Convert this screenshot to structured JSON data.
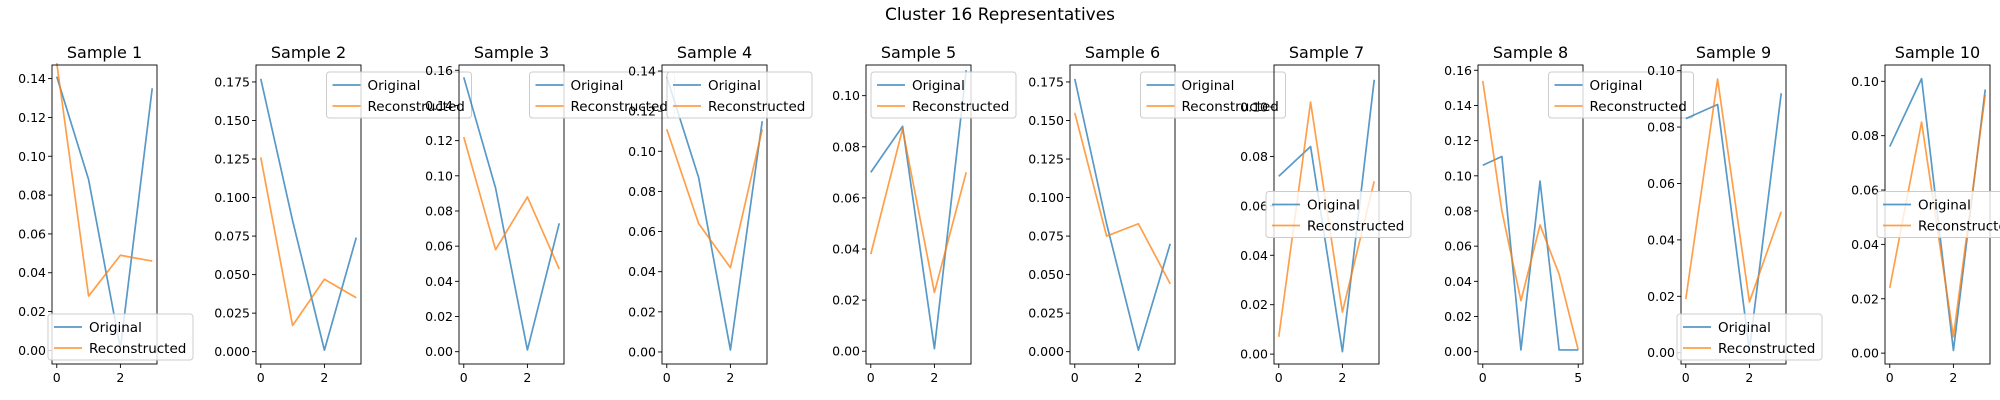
{
  "figure": {
    "suptitle": "Cluster 16 Representatives"
  },
  "colors": {
    "original": "#1f77b4",
    "reconstructed": "#ff7f0e"
  },
  "chart_data": [
    {
      "type": "line",
      "title": "Sample 1",
      "x": [
        0,
        1,
        2,
        3
      ],
      "xlim": [
        -0.15,
        3.15
      ],
      "xticks": [
        0,
        2
      ],
      "ylim": [
        -0.007,
        0.147
      ],
      "yticks": [
        0.0,
        0.02,
        0.04,
        0.06,
        0.08,
        0.1,
        0.12,
        0.14
      ],
      "yfmt": 2,
      "legend_loc": "lower-left",
      "series": [
        {
          "name": "Original",
          "values": [
            0.141,
            0.088,
            0.001,
            0.135
          ]
        },
        {
          "name": "Reconstructed",
          "values": [
            0.148,
            0.028,
            0.049,
            0.046
          ]
        }
      ]
    },
    {
      "type": "line",
      "title": "Sample 2",
      "x": [
        0,
        1,
        2,
        3
      ],
      "xlim": [
        -0.15,
        3.15
      ],
      "xticks": [
        0,
        2
      ],
      "ylim": [
        -0.008,
        0.186
      ],
      "yticks": [
        0.0,
        0.025,
        0.05,
        0.075,
        0.1,
        0.125,
        0.15,
        0.175
      ],
      "yfmt": 3,
      "legend_loc": "upper-right",
      "series": [
        {
          "name": "Original",
          "values": [
            0.177,
            0.085,
            0.001,
            0.074
          ]
        },
        {
          "name": "Reconstructed",
          "values": [
            0.126,
            0.017,
            0.047,
            0.035
          ]
        }
      ]
    },
    {
      "type": "line",
      "title": "Sample 3",
      "x": [
        0,
        1,
        2,
        3
      ],
      "xlim": [
        -0.15,
        3.15
      ],
      "xticks": [
        0,
        2
      ],
      "ylim": [
        -0.007,
        0.163
      ],
      "yticks": [
        0.0,
        0.02,
        0.04,
        0.06,
        0.08,
        0.1,
        0.12,
        0.14,
        0.16
      ],
      "yfmt": 2,
      "legend_loc": "upper-right",
      "series": [
        {
          "name": "Original",
          "values": [
            0.156,
            0.093,
            0.001,
            0.073
          ]
        },
        {
          "name": "Reconstructed",
          "values": [
            0.122,
            0.058,
            0.088,
            0.047
          ]
        }
      ]
    },
    {
      "type": "line",
      "title": "Sample 4",
      "x": [
        0,
        1,
        2,
        3
      ],
      "xlim": [
        -0.15,
        3.15
      ],
      "xticks": [
        0,
        2
      ],
      "ylim": [
        -0.006,
        0.143
      ],
      "yticks": [
        0.0,
        0.02,
        0.04,
        0.06,
        0.08,
        0.1,
        0.12,
        0.14
      ],
      "yfmt": 2,
      "legend_loc": "upper-left",
      "series": [
        {
          "name": "Original",
          "values": [
            0.137,
            0.087,
            0.001,
            0.115
          ]
        },
        {
          "name": "Reconstructed",
          "values": [
            0.111,
            0.064,
            0.042,
            0.111
          ]
        }
      ]
    },
    {
      "type": "line",
      "title": "Sample 5",
      "x": [
        0,
        1,
        2,
        3
      ],
      "xlim": [
        -0.15,
        3.15
      ],
      "xticks": [
        0,
        2
      ],
      "ylim": [
        -0.005,
        0.112
      ],
      "yticks": [
        0.0,
        0.02,
        0.04,
        0.06,
        0.08,
        0.1
      ],
      "yfmt": 2,
      "legend_loc": "upper-left",
      "series": [
        {
          "name": "Original",
          "values": [
            0.07,
            0.088,
            0.001,
            0.11
          ]
        },
        {
          "name": "Reconstructed",
          "values": [
            0.038,
            0.087,
            0.023,
            0.07
          ]
        }
      ]
    },
    {
      "type": "line",
      "title": "Sample 6",
      "x": [
        0,
        1,
        2,
        3
      ],
      "xlim": [
        -0.15,
        3.15
      ],
      "xticks": [
        0,
        2
      ],
      "ylim": [
        -0.008,
        0.186
      ],
      "yticks": [
        0.0,
        0.025,
        0.05,
        0.075,
        0.1,
        0.125,
        0.15,
        0.175
      ],
      "yfmt": 3,
      "legend_loc": "upper-right",
      "series": [
        {
          "name": "Original",
          "values": [
            0.177,
            0.083,
            0.001,
            0.07
          ]
        },
        {
          "name": "Reconstructed",
          "values": [
            0.155,
            0.075,
            0.083,
            0.044
          ]
        }
      ]
    },
    {
      "type": "line",
      "title": "Sample 7",
      "x": [
        0,
        1,
        2,
        3
      ],
      "xlim": [
        -0.15,
        3.15
      ],
      "xticks": [
        0,
        2
      ],
      "ylim": [
        -0.004,
        0.117
      ],
      "yticks": [
        0.0,
        0.02,
        0.04,
        0.06,
        0.08,
        0.1
      ],
      "yfmt": 2,
      "legend_loc": "center-left",
      "series": [
        {
          "name": "Original",
          "values": [
            0.072,
            0.084,
            0.001,
            0.111
          ]
        },
        {
          "name": "Reconstructed",
          "values": [
            0.007,
            0.102,
            0.017,
            0.07
          ]
        }
      ]
    },
    {
      "type": "line",
      "title": "Sample 8",
      "x": [
        0,
        1,
        2,
        3,
        4,
        5
      ],
      "xlim": [
        -0.25,
        5.25
      ],
      "xticks": [
        0,
        5
      ],
      "ylim": [
        -0.007,
        0.163
      ],
      "yticks": [
        0.0,
        0.02,
        0.04,
        0.06,
        0.08,
        0.1,
        0.12,
        0.14,
        0.16
      ],
      "yfmt": 2,
      "legend_loc": "upper-right",
      "series": [
        {
          "name": "Original",
          "values": [
            0.106,
            0.111,
            0.001,
            0.097,
            0.001,
            0.001
          ]
        },
        {
          "name": "Reconstructed",
          "values": [
            0.154,
            0.08,
            0.029,
            0.072,
            0.044,
            0.001
          ]
        }
      ]
    },
    {
      "type": "line",
      "title": "Sample 9",
      "x": [
        0,
        1,
        2,
        3
      ],
      "xlim": [
        -0.15,
        3.15
      ],
      "xticks": [
        0,
        2
      ],
      "ylim": [
        -0.004,
        0.102
      ],
      "yticks": [
        0.0,
        0.02,
        0.04,
        0.06,
        0.08,
        0.1
      ],
      "yfmt": 2,
      "legend_loc": "lower-left",
      "series": [
        {
          "name": "Original",
          "values": [
            0.083,
            0.088,
            0.001,
            0.092
          ]
        },
        {
          "name": "Reconstructed",
          "values": [
            0.019,
            0.097,
            0.018,
            0.05
          ]
        }
      ]
    },
    {
      "type": "line",
      "title": "Sample 10",
      "x": [
        0,
        1,
        2,
        3
      ],
      "xlim": [
        -0.15,
        3.15
      ],
      "xticks": [
        0,
        2
      ],
      "ylim": [
        -0.004,
        0.106
      ],
      "yticks": [
        0.0,
        0.02,
        0.04,
        0.06,
        0.08,
        0.1
      ],
      "yfmt": 2,
      "legend_loc": "center-left",
      "series": [
        {
          "name": "Original",
          "values": [
            0.076,
            0.101,
            0.001,
            0.097
          ]
        },
        {
          "name": "Reconstructed",
          "values": [
            0.024,
            0.085,
            0.006,
            0.095
          ]
        }
      ]
    }
  ]
}
